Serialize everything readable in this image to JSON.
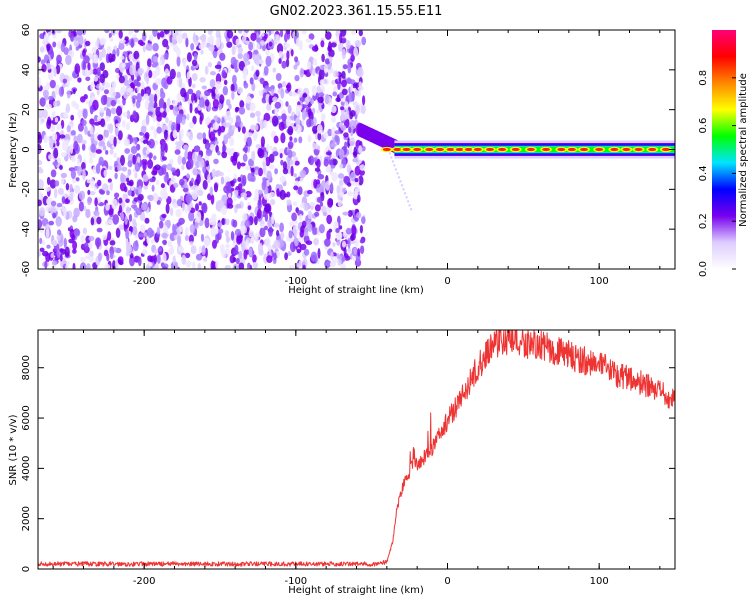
{
  "figure": {
    "title": "GN02.2023.361.15.55.E11"
  },
  "chart_data": [
    {
      "type": "heatmap",
      "xlabel": "Height of straight line (km)",
      "ylabel": "Frequency (Hz)",
      "xlim": [
        -270,
        150
      ],
      "ylim": [
        -60,
        60
      ],
      "x_ticks": [
        -200,
        -100,
        0,
        100
      ],
      "y_ticks": [
        -60,
        -40,
        -20,
        0,
        20,
        40,
        60
      ],
      "grid": false,
      "noise_region_x": [
        -270,
        -55
      ],
      "signal_band_center_hz": 0,
      "colorbar": {
        "label": "Normalized spectral amplitude",
        "range": [
          0,
          1
        ],
        "ticks": [
          0.0,
          0.2,
          0.4,
          0.6,
          0.8
        ],
        "colors": [
          "#ffffff",
          "#ddccff",
          "#7700ee",
          "#0000ff",
          "#00e5ff",
          "#00ff00",
          "#ffff00",
          "#ff8800",
          "#ff0000",
          "#ff0077"
        ]
      }
    },
    {
      "type": "line",
      "xlabel": "Height of straight line (km)",
      "ylabel": "SNR (10 * v/v)",
      "xlim": [
        -270,
        150
      ],
      "ylim": [
        0,
        9500
      ],
      "x_ticks": [
        -200,
        -100,
        0,
        100
      ],
      "y_ticks": [
        0,
        2000,
        4000,
        6000,
        8000
      ],
      "grid": false,
      "color": "#ee3333",
      "x": [
        -270,
        -250,
        -200,
        -150,
        -100,
        -60,
        -45,
        -40,
        -36,
        -34,
        -32,
        -30,
        -27,
        -22,
        -18,
        -14,
        -10,
        -5,
        0,
        5,
        10,
        15,
        20,
        25,
        30,
        40,
        50,
        60,
        70,
        80,
        90,
        100,
        110,
        120,
        130,
        140,
        150
      ],
      "y": [
        200,
        200,
        200,
        200,
        200,
        200,
        200,
        300,
        1100,
        2200,
        2700,
        3200,
        3700,
        4200,
        4200,
        4600,
        4800,
        5400,
        5900,
        6400,
        6900,
        7500,
        8000,
        8500,
        9000,
        9100,
        9000,
        8900,
        8700,
        8500,
        8300,
        8100,
        7800,
        7600,
        7300,
        7000,
        6700
      ]
    }
  ]
}
